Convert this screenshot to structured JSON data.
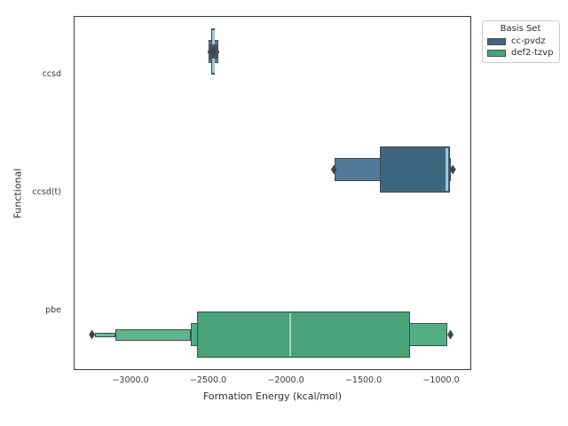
{
  "figure": {
    "title": "",
    "ylabel": "Functional",
    "xlabel": "Formation Energy (kcal/mol)"
  },
  "legend": {
    "title": "Basis Set",
    "entries": [
      {
        "label": "cc-pvdz",
        "color": "#3d6681"
      },
      {
        "label": "def2-tzvp",
        "color": "#48a478"
      }
    ]
  },
  "chart_data": {
    "type": "boxen",
    "orientation": "horizontal",
    "title": "",
    "xlabel": "Formation Energy (kcal/mol)",
    "ylabel": "Functional",
    "grid": false,
    "legend_position": "outside upper right",
    "hue_title": "Basis Set",
    "categories": [
      "ccsd",
      "ccsd(t)",
      "pbe"
    ],
    "xlim": [
      -3366,
      -806
    ],
    "x_ticks": {
      "values": [
        -3000,
        -2500,
        -2000,
        -1500,
        -1000
      ],
      "labels": [
        "−3000.0",
        "−2500.0",
        "−2000.0",
        "−1500.0",
        "−1000.0"
      ]
    },
    "series": [
      {
        "name": "cc-pvdz",
        "dodge": "up",
        "level_colors": [
          "#3d6681",
          "#527b9b"
        ],
        "median_color": "#a3c6dc",
        "groups": [
          {
            "category": "ccsd",
            "median": -2467,
            "boxes": [
              [
                -2479,
                -2456
              ],
              [
                -2497,
                -2437
              ]
            ],
            "whisker": [
              -2504,
              -2429
            ],
            "outlier_cluster": [
              -2494,
              -2440
            ],
            "outliers": [
              -2467
            ]
          },
          {
            "category": "ccsd(t)",
            "median": -963,
            "boxes": [
              [
                -1395,
                -945
              ],
              [
                -1684,
                -940
              ]
            ],
            "outliers": [
              -1690,
              -925
            ]
          }
        ]
      },
      {
        "name": "def2-tzvp",
        "dodge": "down",
        "level_colors": [
          "#48a478",
          "#53ad83",
          "#5eb58d",
          "#69bd97"
        ],
        "median_color": "#9cd9bb",
        "groups": [
          {
            "category": "pbe",
            "median": -1972,
            "boxes": [
              [
                -2570,
                -1200
              ],
              [
                -2612,
                -962
              ],
              [
                -3095,
                -2612
              ],
              [
                -3228,
                -3095
              ]
            ],
            "outliers": [
              -3248,
              -940
            ]
          }
        ]
      }
    ]
  }
}
